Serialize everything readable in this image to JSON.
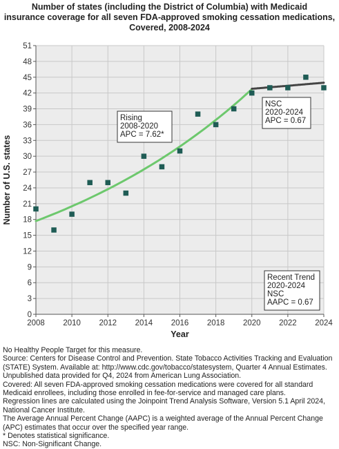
{
  "chart_data": {
    "type": "scatter",
    "title_lines": [
      "Number of states (including the District of Columbia) with Medicaid",
      "insurance coverage for all seven FDA-approved smoking cessation medications,",
      "Covered,  2008-2024"
    ],
    "xlabel": "Year",
    "ylabel": "Number of U.S. states",
    "xlim": [
      2008,
      2024
    ],
    "ylim": [
      0,
      51
    ],
    "x_ticks": [
      2008,
      2010,
      2012,
      2014,
      2016,
      2018,
      2020,
      2022,
      2024
    ],
    "y_ticks": [
      0,
      3,
      6,
      9,
      12,
      15,
      18,
      21,
      24,
      27,
      30,
      33,
      36,
      39,
      42,
      45,
      48,
      51
    ],
    "grid": true,
    "points": [
      {
        "x": 2008,
        "y": 20
      },
      {
        "x": 2009,
        "y": 16
      },
      {
        "x": 2010,
        "y": 19
      },
      {
        "x": 2011,
        "y": 25
      },
      {
        "x": 2012,
        "y": 25
      },
      {
        "x": 2013,
        "y": 23
      },
      {
        "x": 2014,
        "y": 30
      },
      {
        "x": 2015,
        "y": 28
      },
      {
        "x": 2016,
        "y": 31
      },
      {
        "x": 2017,
        "y": 38
      },
      {
        "x": 2018,
        "y": 36
      },
      {
        "x": 2019,
        "y": 39
      },
      {
        "x": 2020,
        "y": 42
      },
      {
        "x": 2021,
        "y": 43
      },
      {
        "x": 2022,
        "y": 43
      },
      {
        "x": 2023,
        "y": 45
      },
      {
        "x": 2024,
        "y": 43
      }
    ],
    "trend_segments": [
      {
        "x_start": 2008,
        "x_end": 2020,
        "y_start": 17.7,
        "apc": 7.62,
        "color": "#6dc86d"
      },
      {
        "x_start": 2020,
        "x_end": 2024,
        "y_start": 42.8,
        "apc": 0.67,
        "color": "#444444"
      }
    ],
    "point_color": "#1f5c55",
    "annotations": [
      {
        "lines": [
          "Rising",
          "2008-2020",
          "APC =  7.62*"
        ]
      },
      {
        "lines": [
          "NSC",
          "2020-2024",
          "APC =  0.67"
        ]
      },
      {
        "lines": [
          "Recent Trend",
          "2020-2024",
          "NSC",
          "AAPC =  0.67"
        ]
      }
    ]
  },
  "notes": [
    "No Healthy People Target for this measure.",
    "Source: Centers for Disease Control and Prevention. State Tobacco Activities Tracking and Evaluation",
    "(STATE) System. Available at: http://www.cdc.gov/tobacco/statesystem, Quarter 4 Annual Estimates.",
    "Unpublished data provided for Q4, 2024 from American Lung Association.",
    "Covered: All seven FDA-approved smoking cessation medications were covered for all standard",
    "Medicaid enrollees, including those enrolled in fee-for-service and managed care plans.",
    "Regression lines are calculated using the Joinpoint Trend Analysis Software, Version 5.1 April 2024,",
    "National Cancer Institute.",
    "The Average Annual Percent Change (AAPC) is a weighted average of the Annual Percent Change",
    "(APC) estimates that occur over the specified year range.",
    "* Denotes statistical significance.",
    "NSC: Non-Significant Change."
  ]
}
